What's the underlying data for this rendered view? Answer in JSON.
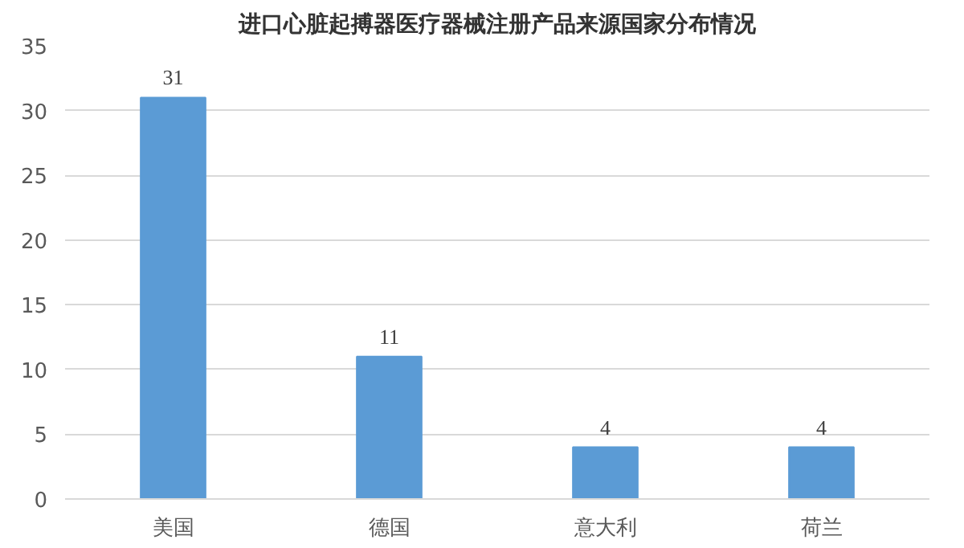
{
  "chart_data": {
    "type": "bar",
    "title": "进口心脏起搏器医疗器械注册产品来源国家分布情况",
    "categories": [
      "美国",
      "德国",
      "意大利",
      "荷兰"
    ],
    "values": [
      31,
      11,
      4,
      4
    ],
    "color": "#5b9bd5",
    "ylim": [
      0,
      35
    ],
    "yticks": [
      0,
      5,
      10,
      15,
      20,
      25,
      30,
      35
    ],
    "grid": "y",
    "data_labels": true
  }
}
